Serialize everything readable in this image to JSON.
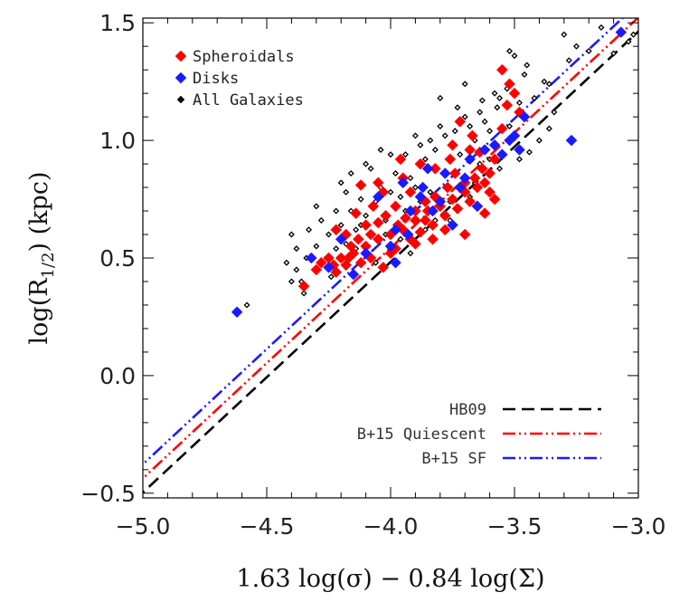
{
  "chart_data": {
    "type": "scatter",
    "xlabel": "1.63 log(σ) − 0.84 log(Σ)",
    "ylabel": {
      "main": "log(R",
      "sub": "1/2",
      "tail": ")  (kpc)"
    },
    "xlim": [
      -5.0,
      -3.0
    ],
    "ylim": [
      -0.52,
      1.52
    ],
    "xticks": [
      -5.0,
      -4.5,
      -4.0,
      -3.5,
      -3.0
    ],
    "xtick_labels": [
      "−5.0",
      "−4.5",
      "−4.0",
      "−3.5",
      "−3.0"
    ],
    "yticks": [
      -0.5,
      0.0,
      0.5,
      1.0,
      1.5
    ],
    "ytick_labels": [
      "−0.5",
      "0.0",
      "0.5",
      "1.0",
      "1.5"
    ],
    "grid": false,
    "marker_legend_position": "top-left",
    "line_legend_position": "bottom-right",
    "marker_series": [
      {
        "name": "Spheroidals",
        "color": "#ff0000",
        "marker": "filled-diamond",
        "points": [
          [
            -4.35,
            0.38
          ],
          [
            -4.3,
            0.45
          ],
          [
            -4.22,
            0.44
          ],
          [
            -4.18,
            0.47
          ],
          [
            -4.15,
            0.52
          ],
          [
            -4.12,
            0.48
          ],
          [
            -4.1,
            0.55
          ],
          [
            -4.08,
            0.5
          ],
          [
            -4.05,
            0.58
          ],
          [
            -4.03,
            0.46
          ],
          [
            -4.0,
            0.6
          ],
          [
            -3.98,
            0.54
          ],
          [
            -3.95,
            0.62
          ],
          [
            -3.92,
            0.58
          ],
          [
            -3.9,
            0.66
          ],
          [
            -3.88,
            0.61
          ],
          [
            -3.85,
            0.7
          ],
          [
            -3.83,
            0.64
          ],
          [
            -3.8,
            0.72
          ],
          [
            -3.78,
            0.68
          ],
          [
            -3.75,
            0.75
          ],
          [
            -3.73,
            0.71
          ],
          [
            -3.7,
            0.78
          ],
          [
            -3.68,
            0.74
          ],
          [
            -3.65,
            0.8
          ],
          [
            -3.62,
            0.82
          ],
          [
            -3.6,
            0.86
          ],
          [
            -3.58,
            0.92
          ],
          [
            -3.55,
            1.05
          ],
          [
            -3.53,
            1.15
          ],
          [
            -3.52,
            1.24
          ],
          [
            -3.5,
            1.2
          ],
          [
            -3.48,
            1.12
          ],
          [
            -3.55,
            1.3
          ],
          [
            -3.6,
            0.78
          ],
          [
            -3.63,
            0.88
          ],
          [
            -3.66,
            0.84
          ],
          [
            -3.7,
            0.82
          ],
          [
            -3.74,
            0.86
          ],
          [
            -3.77,
            0.8
          ],
          [
            -3.82,
            0.76
          ],
          [
            -3.86,
            0.74
          ],
          [
            -3.9,
            0.7
          ],
          [
            -3.94,
            0.67
          ],
          [
            -3.97,
            0.64
          ],
          [
            -4.0,
            0.52
          ],
          [
            -4.02,
            0.68
          ],
          [
            -4.05,
            0.65
          ],
          [
            -4.08,
            0.6
          ],
          [
            -4.1,
            0.64
          ],
          [
            -4.13,
            0.58
          ],
          [
            -4.16,
            0.55
          ],
          [
            -4.18,
            0.6
          ],
          [
            -4.2,
            0.5
          ],
          [
            -4.25,
            0.5
          ],
          [
            -4.28,
            0.48
          ],
          [
            -4.05,
            0.82
          ],
          [
            -3.88,
            0.9
          ],
          [
            -3.75,
            0.98
          ],
          [
            -3.72,
            1.08
          ],
          [
            -4.12,
            0.81
          ],
          [
            -3.62,
            0.69
          ],
          [
            -3.58,
            0.75
          ],
          [
            -3.65,
            0.72
          ],
          [
            -3.67,
            1.02
          ],
          [
            -3.92,
            0.78
          ],
          [
            -3.82,
            0.88
          ],
          [
            -3.95,
            0.84
          ],
          [
            -3.86,
            0.66
          ],
          [
            -3.78,
            0.62
          ],
          [
            -4.07,
            0.72
          ],
          [
            -4.14,
            0.69
          ],
          [
            -3.7,
            0.6
          ],
          [
            -3.83,
            0.58
          ],
          [
            -3.98,
            0.72
          ],
          [
            -3.9,
            0.56
          ],
          [
            -4.22,
            0.62
          ],
          [
            -3.76,
            0.92
          ],
          [
            -3.64,
            0.95
          ],
          [
            -3.96,
            0.92
          ],
          [
            -4.03,
            0.78
          ],
          [
            -4.17,
            0.5
          ],
          [
            -4.23,
            0.47
          ],
          [
            -3.68,
            0.96
          ]
        ]
      },
      {
        "name": "Disks",
        "color": "#1a1aff",
        "marker": "filled-diamond",
        "points": [
          [
            -4.62,
            0.27
          ],
          [
            -4.32,
            0.5
          ],
          [
            -4.25,
            0.46
          ],
          [
            -4.15,
            0.43
          ],
          [
            -4.1,
            0.52
          ],
          [
            -4.0,
            0.55
          ],
          [
            -3.98,
            0.62
          ],
          [
            -3.95,
            0.82
          ],
          [
            -3.92,
            0.7
          ],
          [
            -3.88,
            0.76
          ],
          [
            -3.85,
            0.88
          ],
          [
            -3.8,
            0.74
          ],
          [
            -3.78,
            0.86
          ],
          [
            -3.75,
            0.64
          ],
          [
            -3.72,
            0.8
          ],
          [
            -3.7,
            0.84
          ],
          [
            -3.68,
            0.92
          ],
          [
            -3.65,
            0.72
          ],
          [
            -3.62,
            0.96
          ],
          [
            -3.58,
            0.98
          ],
          [
            -3.55,
            0.94
          ],
          [
            -3.52,
            1.0
          ],
          [
            -3.5,
            1.02
          ],
          [
            -3.48,
            0.96
          ],
          [
            -3.46,
            1.1
          ],
          [
            -3.27,
            1.0
          ],
          [
            -3.07,
            1.46
          ],
          [
            -4.05,
            0.76
          ],
          [
            -3.93,
            0.6
          ],
          [
            -3.83,
            0.7
          ],
          [
            -4.2,
            0.58
          ],
          [
            -3.98,
            0.48
          ],
          [
            -3.87,
            0.8
          ]
        ]
      },
      {
        "name": "All Galaxies",
        "color": "#000000",
        "marker": "open-diamond",
        "points": [
          [
            -4.58,
            0.3
          ],
          [
            -4.4,
            0.6
          ],
          [
            -4.38,
            0.45
          ],
          [
            -4.36,
            0.4
          ],
          [
            -4.33,
            0.62
          ],
          [
            -4.3,
            0.55
          ],
          [
            -4.28,
            0.66
          ],
          [
            -4.25,
            0.6
          ],
          [
            -4.22,
            0.7
          ],
          [
            -4.2,
            0.64
          ],
          [
            -4.18,
            0.78
          ],
          [
            -4.16,
            0.7
          ],
          [
            -4.14,
            0.62
          ],
          [
            -4.12,
            0.75
          ],
          [
            -4.1,
            0.68
          ],
          [
            -4.08,
            0.88
          ],
          [
            -4.06,
            0.74
          ],
          [
            -4.04,
            0.8
          ],
          [
            -4.02,
            0.6
          ],
          [
            -4.0,
            0.78
          ],
          [
            -3.98,
            0.86
          ],
          [
            -3.96,
            0.76
          ],
          [
            -3.94,
            0.94
          ],
          [
            -3.92,
            0.84
          ],
          [
            -3.9,
            0.8
          ],
          [
            -3.88,
            0.98
          ],
          [
            -3.86,
            0.92
          ],
          [
            -3.84,
            1.0
          ],
          [
            -3.82,
            0.96
          ],
          [
            -3.8,
            1.06
          ],
          [
            -3.78,
            1.02
          ],
          [
            -3.76,
            0.66
          ],
          [
            -3.74,
            1.04
          ],
          [
            -3.72,
            0.94
          ],
          [
            -3.7,
            1.1
          ],
          [
            -3.68,
            1.06
          ],
          [
            -3.66,
            1.0
          ],
          [
            -3.64,
            1.12
          ],
          [
            -3.62,
            1.08
          ],
          [
            -3.6,
            1.04
          ],
          [
            -3.58,
            1.2
          ],
          [
            -3.56,
            1.18
          ],
          [
            -3.54,
            1.3
          ],
          [
            -3.52,
            1.38
          ],
          [
            -3.5,
            1.36
          ],
          [
            -3.46,
            1.28
          ],
          [
            -3.42,
            1.18
          ],
          [
            -3.38,
            1.25
          ],
          [
            -3.34,
            1.12
          ],
          [
            -3.3,
            1.45
          ],
          [
            -3.25,
            1.4
          ],
          [
            -3.2,
            1.38
          ],
          [
            -3.15,
            1.48
          ],
          [
            -3.1,
            1.37
          ],
          [
            -3.04,
            1.42
          ],
          [
            -3.02,
            1.45
          ],
          [
            -3.7,
            1.24
          ],
          [
            -3.8,
            1.18
          ],
          [
            -3.9,
            1.02
          ],
          [
            -4.0,
            0.94
          ],
          [
            -4.1,
            0.9
          ],
          [
            -4.2,
            0.82
          ],
          [
            -4.3,
            0.72
          ],
          [
            -4.35,
            0.35
          ],
          [
            -4.26,
            0.5
          ],
          [
            -4.14,
            0.54
          ],
          [
            -4.06,
            0.48
          ],
          [
            -3.96,
            0.58
          ],
          [
            -3.86,
            0.62
          ],
          [
            -3.76,
            0.74
          ],
          [
            -3.66,
            0.82
          ],
          [
            -3.56,
            0.88
          ],
          [
            -3.48,
            0.92
          ],
          [
            -3.4,
            1.0
          ],
          [
            -3.44,
            0.95
          ],
          [
            -3.36,
            1.05
          ],
          [
            -4.24,
            0.42
          ],
          [
            -4.34,
            0.5
          ],
          [
            -4.4,
            0.4
          ],
          [
            -4.42,
            0.48
          ],
          [
            -4.02,
            0.66
          ],
          [
            -3.94,
            0.7
          ],
          [
            -3.84,
            0.78
          ],
          [
            -3.74,
            0.86
          ],
          [
            -3.64,
            0.9
          ],
          [
            -3.6,
            0.92
          ],
          [
            -3.52,
            1.06
          ],
          [
            -3.57,
            1.14
          ],
          [
            -3.48,
            1.16
          ],
          [
            -3.53,
            1.22
          ],
          [
            -3.63,
            1.17
          ],
          [
            -3.73,
            1.14
          ],
          [
            -4.04,
            0.96
          ],
          [
            -4.16,
            0.86
          ],
          [
            -4.08,
            0.72
          ],
          [
            -3.98,
            0.64
          ],
          [
            -3.88,
            0.74
          ],
          [
            -3.78,
            0.8
          ],
          [
            -3.68,
            0.76
          ],
          [
            -3.82,
            0.66
          ],
          [
            -4.12,
            0.64
          ],
          [
            -4.18,
            0.56
          ],
          [
            -4.22,
            0.54
          ],
          [
            -3.92,
            0.52
          ],
          [
            -4.38,
            0.54
          ],
          [
            -3.45,
            1.32
          ],
          [
            -3.36,
            1.24
          ],
          [
            -3.28,
            1.34
          ]
        ]
      }
    ],
    "line_series": [
      {
        "name": "HB09",
        "color": "#000000",
        "dash": "dashed",
        "slope": 0.98,
        "intercept": 4.403
      },
      {
        "name": "B+15 Quiescent",
        "color": "#ff0000",
        "dash": "dash-dot-dot",
        "slope": 0.98,
        "intercept": 4.463
      },
      {
        "name": "B+15 SF",
        "color": "#1a1aff",
        "dash": "dash-dot-dot",
        "slope": 0.98,
        "intercept": 4.523
      }
    ]
  }
}
